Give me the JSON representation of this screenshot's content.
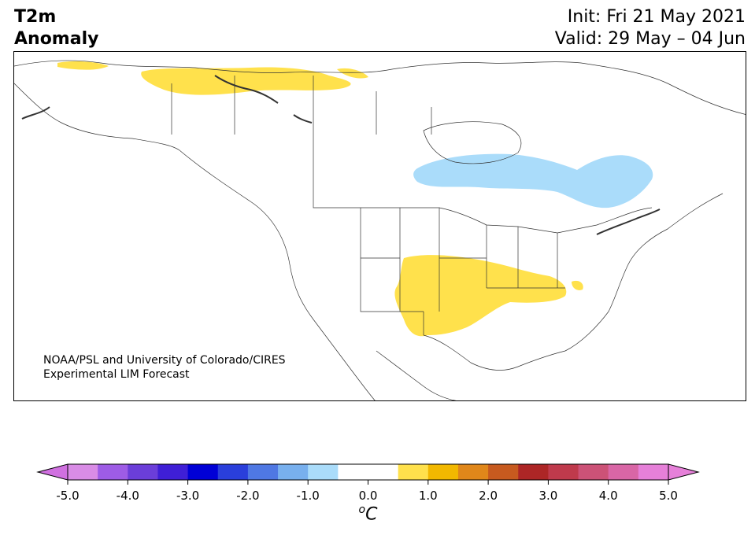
{
  "header": {
    "title_line1": "T2m",
    "title_line2": "Anomaly",
    "init": "Init: Fri 21 May 2021",
    "valid": "Valid: 29 May – 04 Jun"
  },
  "map": {
    "region": "North America",
    "credit_line1": "NOAA/PSL and University of Colorado/CIRES",
    "credit_line2": "Experimental LIM Forecast",
    "colors": {
      "warm_anomaly": "#ffe14c",
      "cool_anomaly": "#aadcfa",
      "land_border": "#333333"
    }
  },
  "colorbar": {
    "unit_label": "C",
    "unit_prefix": "o",
    "ticks": [
      "-5.0",
      "-4.0",
      "-3.0",
      "-2.0",
      "-1.0",
      "0.0",
      "1.0",
      "2.0",
      "3.0",
      "4.0",
      "5.0"
    ],
    "colors": [
      "#d98ce6",
      "#9e5ce6",
      "#6b3ed9",
      "#3f1fd6",
      "#0000d6",
      "#2a3fdb",
      "#4f78e3",
      "#78b0ee",
      "#aadcfa",
      "#ffffff",
      "#ffffff",
      "#ffe14c",
      "#f2b800",
      "#e0871a",
      "#c75a1f",
      "#ad2626",
      "#bf3a4c",
      "#cc5277",
      "#d966a6",
      "#e680d9"
    ],
    "under_color": "#d070e0",
    "over_color": "#e680d9"
  }
}
